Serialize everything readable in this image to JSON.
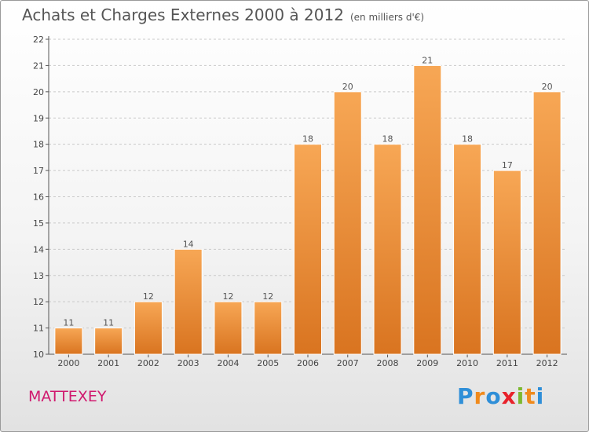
{
  "header": {
    "title": "Achats et Charges Externes 2000 à 2012",
    "unit": "(en milliers d'€)"
  },
  "footer": {
    "commune": "MATTEXEY",
    "brand": [
      "P",
      "r",
      "o",
      "x",
      "i",
      "t",
      "i"
    ],
    "brand_colors": [
      "#2f8fd8",
      "#f08a1c",
      "#2f8fd8",
      "#e8222b",
      "#7cb82f",
      "#f08a1c",
      "#2f8fd8"
    ]
  },
  "chart_data": {
    "type": "bar",
    "categories": [
      "2000",
      "2001",
      "2002",
      "2003",
      "2004",
      "2005",
      "2006",
      "2007",
      "2008",
      "2009",
      "2010",
      "2011",
      "2012"
    ],
    "values": [
      11,
      11,
      12,
      14,
      12,
      12,
      18,
      20,
      18,
      21,
      18,
      17,
      20
    ],
    "title": "Achats et Charges Externes 2000 à 2012",
    "xlabel": "",
    "ylabel": "",
    "ylim": [
      10,
      22
    ],
    "yticks": [
      10,
      11,
      12,
      13,
      14,
      15,
      16,
      17,
      18,
      19,
      20,
      21,
      22
    ],
    "grid": true,
    "bar_color_top": "#f7a755",
    "bar_color_bottom": "#d97420"
  }
}
